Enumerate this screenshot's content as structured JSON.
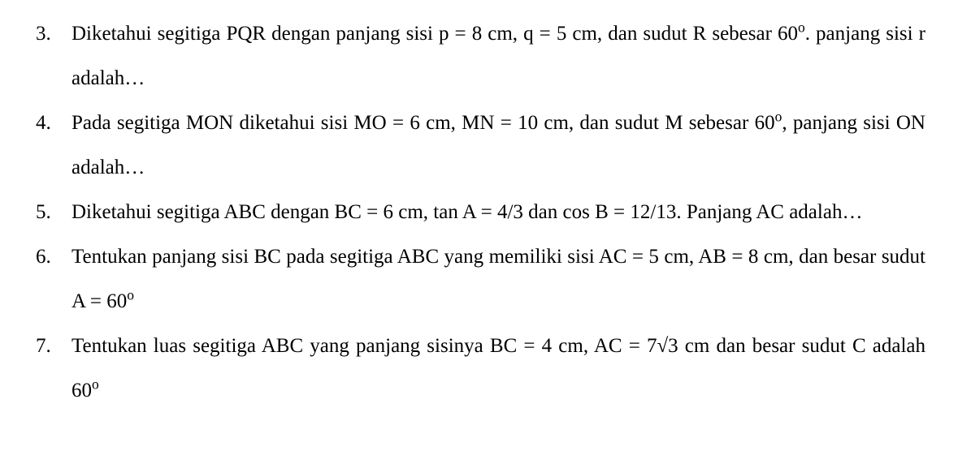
{
  "document": {
    "font_family": "Times New Roman",
    "font_size_pt": 25,
    "line_height": 2.2,
    "text_color": "#000000",
    "background_color": "#ffffff",
    "text_align": "justify",
    "list_type": "numbered",
    "start_number": 3
  },
  "problems": [
    {
      "number": "3.",
      "text_parts": {
        "a": "Diketahui segitiga PQR dengan panjang sisi p = 8 cm, q = 5 cm, dan sudut R sebesar 60",
        "deg1": "o",
        "b": ". panjang sisi r adalah…"
      }
    },
    {
      "number": "4.",
      "text_parts": {
        "a": "Pada segitiga MON diketahui sisi MO = 6 cm, MN = 10 cm, dan sudut M sebesar 60",
        "deg1": "o",
        "b": ", panjang sisi ON adalah…"
      }
    },
    {
      "number": "5.",
      "text_parts": {
        "a": "Diketahui segitiga ABC dengan BC = 6 cm, tan A = 4/3 dan cos B = 12/13. Panjang AC adalah…"
      }
    },
    {
      "number": "6.",
      "text_parts": {
        "a": "Tentukan panjang sisi BC pada segitiga ABC yang memiliki sisi AC = 5 cm, AB = 8 cm, dan besar sudut A = 60",
        "deg1": "o"
      }
    },
    {
      "number": "7.",
      "text_parts": {
        "a": "Tentukan luas segitiga ABC yang panjang sisinya BC = 4 cm, AC = 7√3 cm dan besar sudut C adalah 60",
        "deg1": "o"
      }
    }
  ]
}
